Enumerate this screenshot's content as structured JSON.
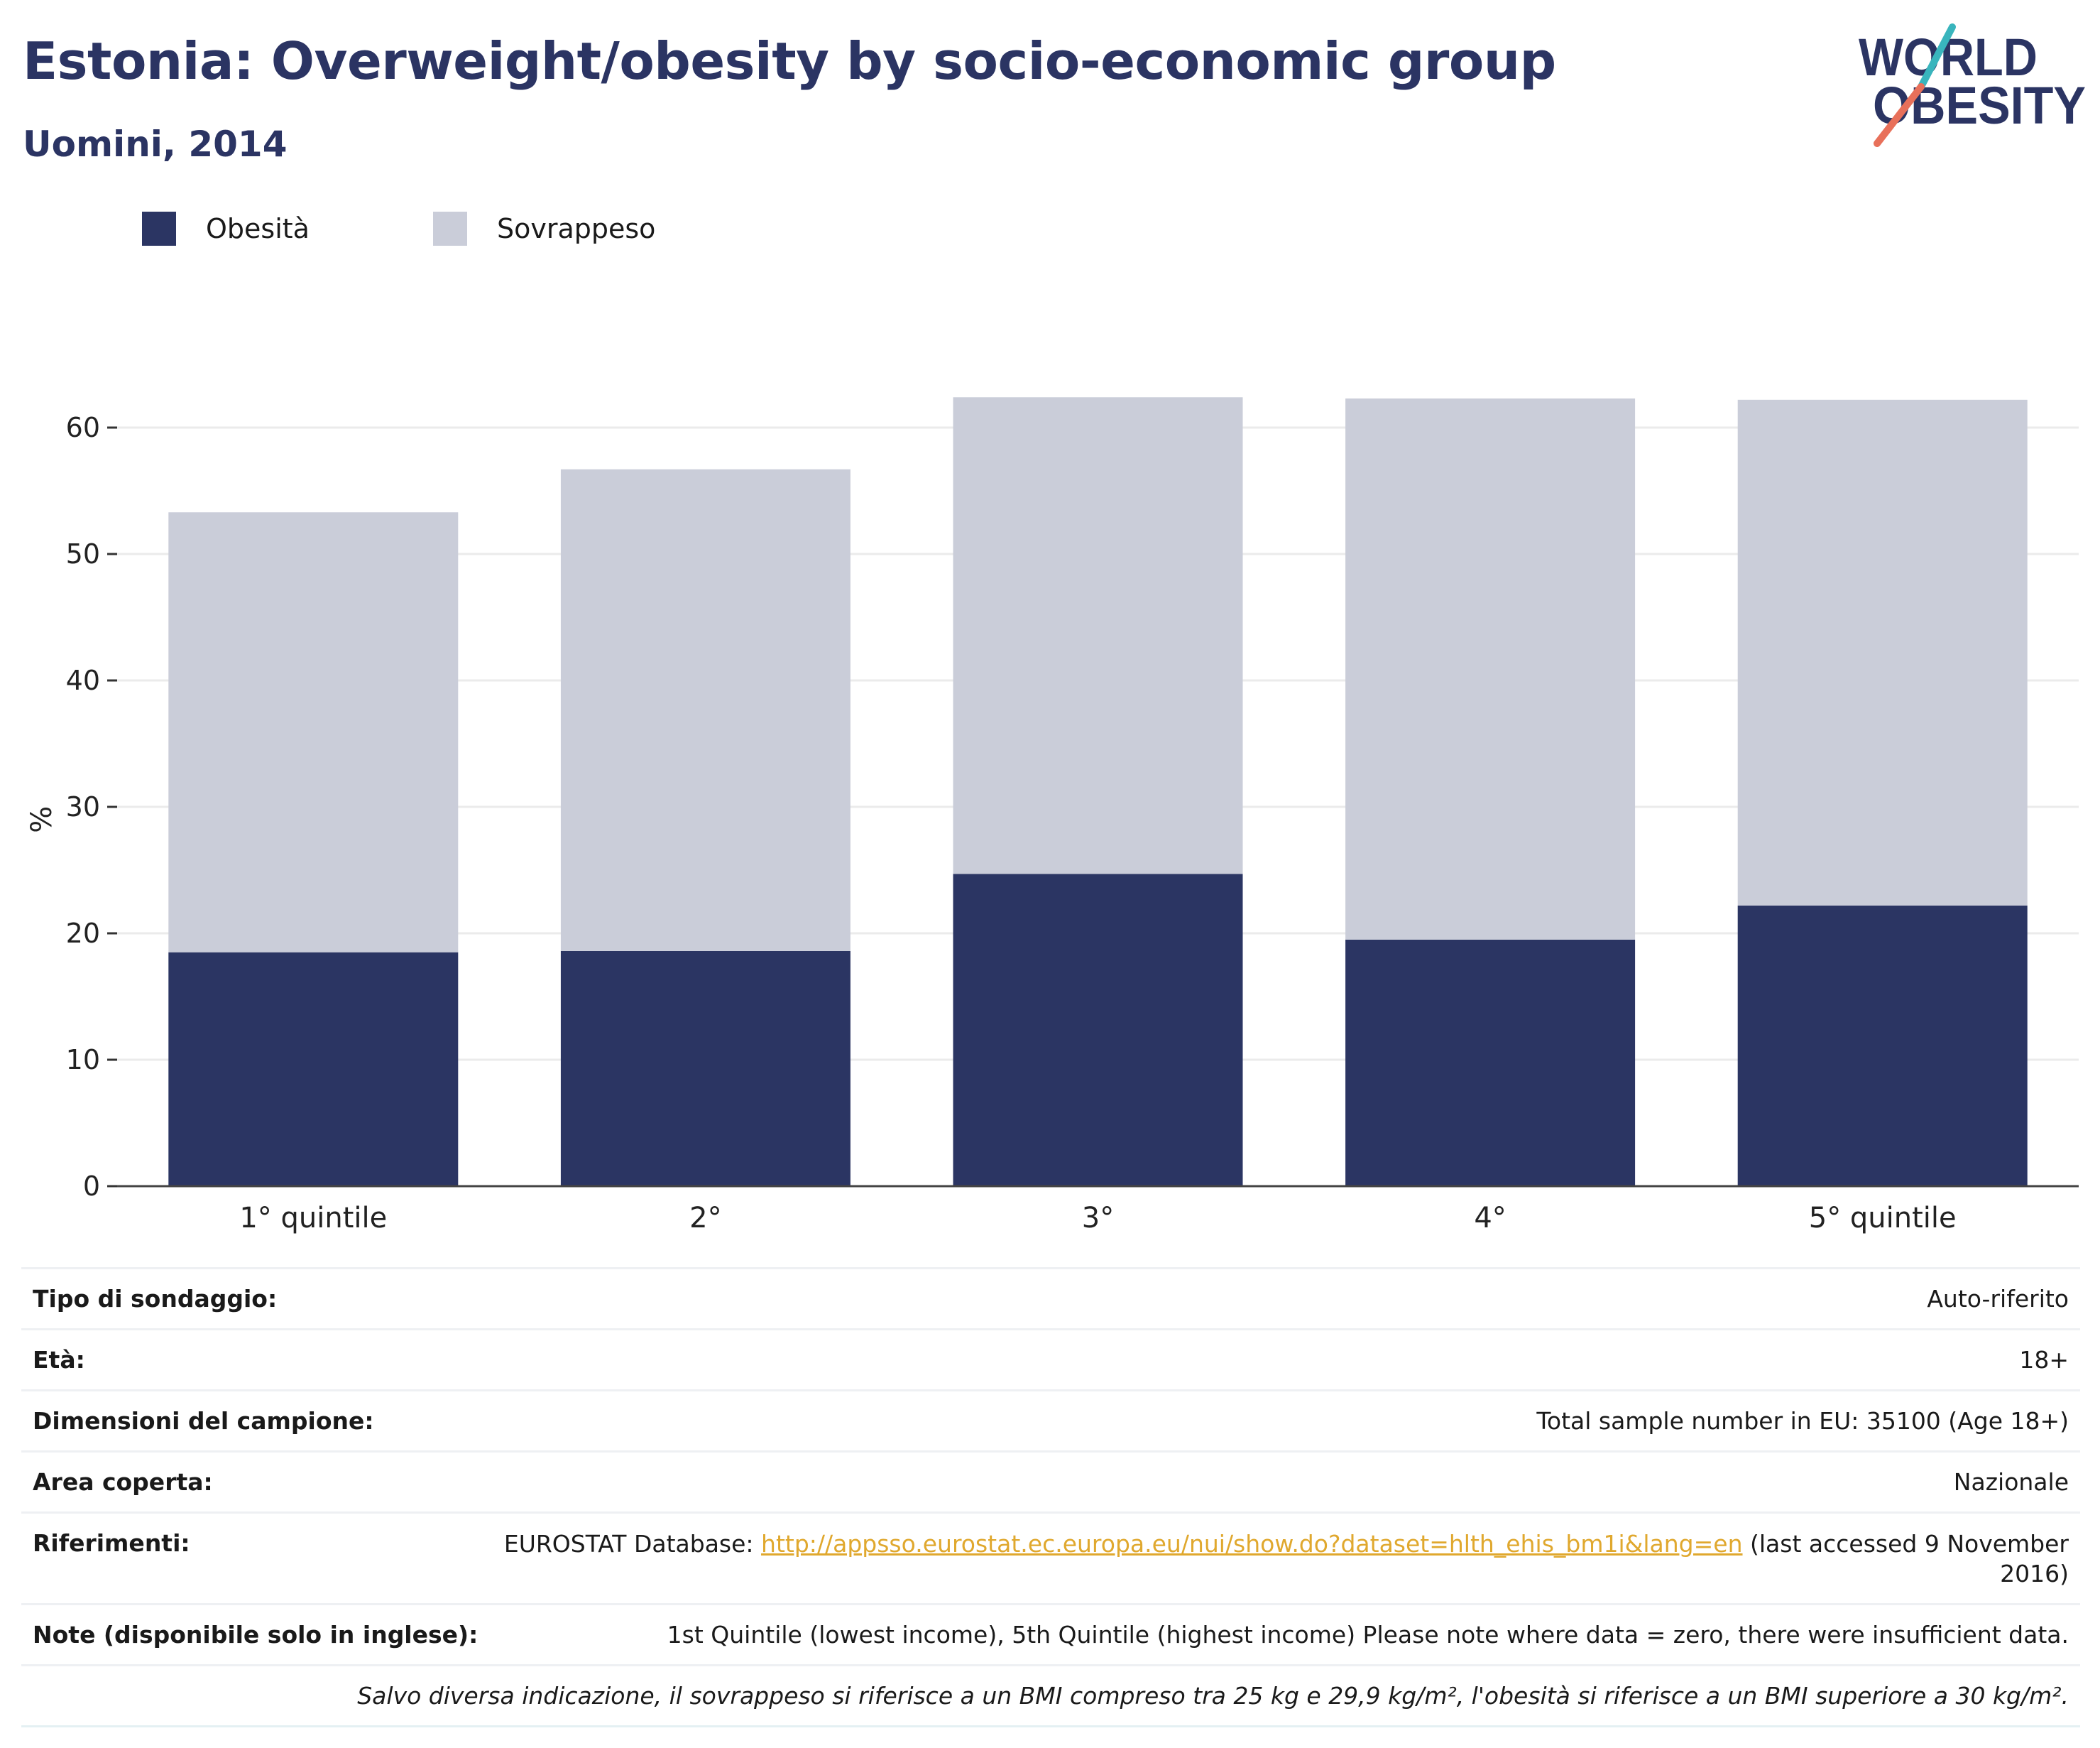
{
  "header": {
    "title": "Estonia: Overweight/obesity by socio-economic group",
    "subtitle": "Uomini, 2014",
    "logo_line1": "WORLD",
    "logo_line2": "OBESITY"
  },
  "colors": {
    "obesity": "#2b3563",
    "overweight": "#cacdd9",
    "title": "#2b3463",
    "logo_navy": "#2b3463",
    "logo_teal": "#39b5bd",
    "logo_coral": "#e8705a",
    "link": "#e0a82e"
  },
  "legend": {
    "obesity_label": "Obesità",
    "overweight_label": "Sovrappeso"
  },
  "chart_data": {
    "type": "bar",
    "stacked": true,
    "categories": [
      "1° quintile",
      "2°",
      "3°",
      "4°",
      "5° quintile"
    ],
    "series": [
      {
        "name": "Obesità",
        "values": [
          18.5,
          18.6,
          24.7,
          19.5,
          22.2
        ]
      },
      {
        "name": "Sovrappeso",
        "values": [
          34.8,
          38.1,
          37.7,
          42.8,
          40.0
        ]
      }
    ],
    "totals": [
      53.3,
      56.7,
      62.4,
      62.3,
      62.2
    ],
    "ylabel": "%",
    "ylim": [
      0,
      65
    ],
    "yticks": [
      0,
      10,
      20,
      30,
      40,
      50,
      60
    ],
    "grid": true,
    "legend_position": "top-left"
  },
  "info": {
    "rows": [
      {
        "key": "Tipo di sondaggio:",
        "value": "Auto-riferito"
      },
      {
        "key": "Età:",
        "value": "18+"
      },
      {
        "key": "Dimensioni del campione:",
        "value": "Total sample number in EU: 35100 (Age 18+)"
      },
      {
        "key": "Area coperta:",
        "value": "Nazionale"
      }
    ],
    "ref_key": "Riferimenti:",
    "ref_prefix": "EUROSTAT Database: ",
    "ref_link": "http://appsso.eurostat.ec.europa.eu/nui/show.do?dataset=hlth_ehis_bm1i&lang=en",
    "ref_suffix_1": " (last accessed 9 November",
    "ref_suffix_2": "2016)",
    "notes_key": "Note (disponibile solo in inglese):",
    "notes_value": "1st Quintile (lowest income), 5th Quintile (highest income) Please note where data = zero, there were insufficient data.",
    "footnote": "Salvo diversa indicazione, il sovrappeso si riferisce a un BMI compreso tra 25 kg e 29,9 kg/m², l'obesità si riferisce a un BMI superiore a 30 kg/m²."
  }
}
